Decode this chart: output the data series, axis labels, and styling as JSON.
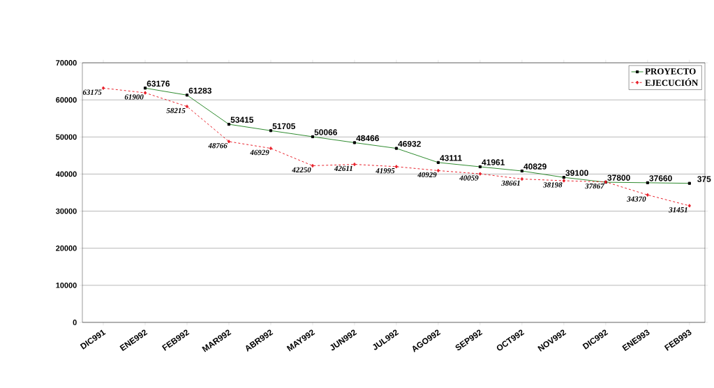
{
  "chart_data": {
    "type": "line",
    "categories": [
      "DIC991",
      "ENE992",
      "FEB992",
      "MAR992",
      "ABR992",
      "MAY992",
      "JUN992",
      "JUL992",
      "AGO992",
      "SEP992",
      "OCT992",
      "NOV992",
      "DIC992",
      "ENE993",
      "FEB993"
    ],
    "series": [
      {
        "name": "PROYECTO",
        "color": "#2e8b2e",
        "marker": "square",
        "line_style": "solid",
        "values": [
          null,
          63176,
          61283,
          53415,
          51705,
          50066,
          48466,
          46932,
          43111,
          41961,
          40829,
          39100,
          37800,
          37660,
          37500
        ],
        "value_labels": [
          null,
          "63176",
          "61283",
          "53415",
          "51705",
          "50066",
          "48466",
          "46932",
          "43111",
          "41961",
          "40829",
          "39100",
          "37800",
          "37660",
          null
        ]
      },
      {
        "name": "EJECUCIÓN",
        "color": "#e8202a",
        "marker": "diamond",
        "line_style": "dashed",
        "values": [
          63175,
          61900,
          58215,
          48766,
          46929,
          42250,
          42611,
          41995,
          40929,
          40059,
          38661,
          38198,
          37867,
          34370,
          31451
        ],
        "value_labels": [
          "63175",
          "61900",
          "58215",
          "48766",
          "46929",
          "42250",
          "42611",
          "41995",
          "40929",
          "40059",
          "38661",
          "38198",
          "37867",
          "34370",
          "31451"
        ]
      }
    ],
    "ylim": [
      0,
      70000
    ],
    "yticks": [
      0,
      10000,
      20000,
      30000,
      40000,
      50000,
      60000,
      70000
    ],
    "grid": "y",
    "legend": "top right",
    "annotations": [
      "375"
    ]
  }
}
